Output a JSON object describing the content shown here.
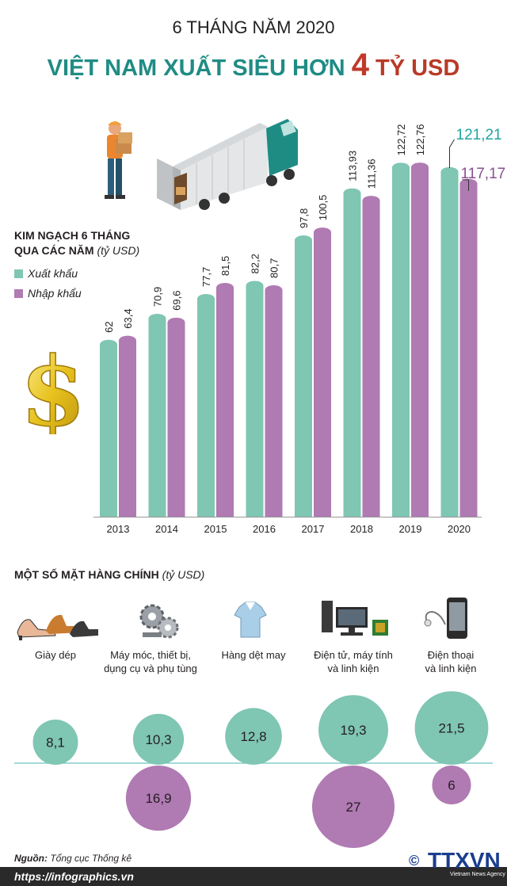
{
  "header": {
    "subtitle": "6 THÁNG NĂM 2020",
    "title_part1": "VIỆT NAM XUẤT SIÊU HƠN ",
    "title_number": "4",
    "title_part2": " TỶ USD"
  },
  "legend": {
    "title_line1": "KIM NGẠCH 6 THÁNG",
    "title_line2": "QUA CÁC NĂM ",
    "unit": "(tỷ USD)",
    "export_label": "Xuất khẩu",
    "import_label": "Nhập khẩu"
  },
  "colors": {
    "export": "#7fc6b3",
    "import": "#b07ab3",
    "export_highlight": "#1ea5a0",
    "import_highlight": "#8b4f8e",
    "title_teal": "#1f8c84",
    "title_red": "#b83a26"
  },
  "chart_data": {
    "type": "bar",
    "categories": [
      "2013",
      "2014",
      "2015",
      "2016",
      "2017",
      "2018",
      "2019",
      "2020"
    ],
    "series": [
      {
        "name": "Xuất khẩu",
        "values": [
          62,
          70.9,
          77.7,
          82.2,
          97.8,
          113.93,
          122.72,
          121.21
        ],
        "labels": [
          "62",
          "70,9",
          "77,7",
          "82,2",
          "97,8",
          "113,93",
          "122,72",
          "121,21"
        ]
      },
      {
        "name": "Nhập khẩu",
        "values": [
          63.4,
          69.6,
          81.5,
          80.7,
          100.5,
          111.36,
          122.76,
          117.17
        ],
        "labels": [
          "63,4",
          "69,6",
          "81,5",
          "80,7",
          "100,5",
          "111,36",
          "122,76",
          "117,17"
        ]
      }
    ],
    "ylim": [
      0,
      130
    ]
  },
  "items_section": {
    "title": "MỘT SỐ MẶT HÀNG CHÍNH ",
    "unit": "(tỷ USD)",
    "items": [
      {
        "label_line1": "Giày dép",
        "label_line2": "",
        "icon": "shoes-icon",
        "export": 8.1,
        "export_label": "8,1",
        "import": null,
        "import_label": ""
      },
      {
        "label_line1": "Máy móc, thiết bị,",
        "label_line2": "dụng cụ và phụ tùng",
        "icon": "gears-icon",
        "export": 10.3,
        "export_label": "10,3",
        "import": 16.9,
        "import_label": "16,9"
      },
      {
        "label_line1": "Hàng dệt may",
        "label_line2": "",
        "icon": "shirt-icon",
        "export": 12.8,
        "export_label": "12,8",
        "import": null,
        "import_label": ""
      },
      {
        "label_line1": "Điện tử, máy tính",
        "label_line2": "và linh kiện",
        "icon": "computer-icon",
        "export": 19.3,
        "export_label": "19,3",
        "import": 27,
        "import_label": "27"
      },
      {
        "label_line1": "Điện thoại",
        "label_line2": "và linh kiện",
        "icon": "phone-icon",
        "export": 21.5,
        "export_label": "21,5",
        "import": 6,
        "import_label": "6"
      }
    ]
  },
  "footer": {
    "source_label": "Nguồn:",
    "source_text": " Tổng cục Thống kê",
    "url": "https://infographics.vn",
    "logo": "TTXVN",
    "logo_sub": "Vietnam News Agency",
    "copyright": "©"
  }
}
